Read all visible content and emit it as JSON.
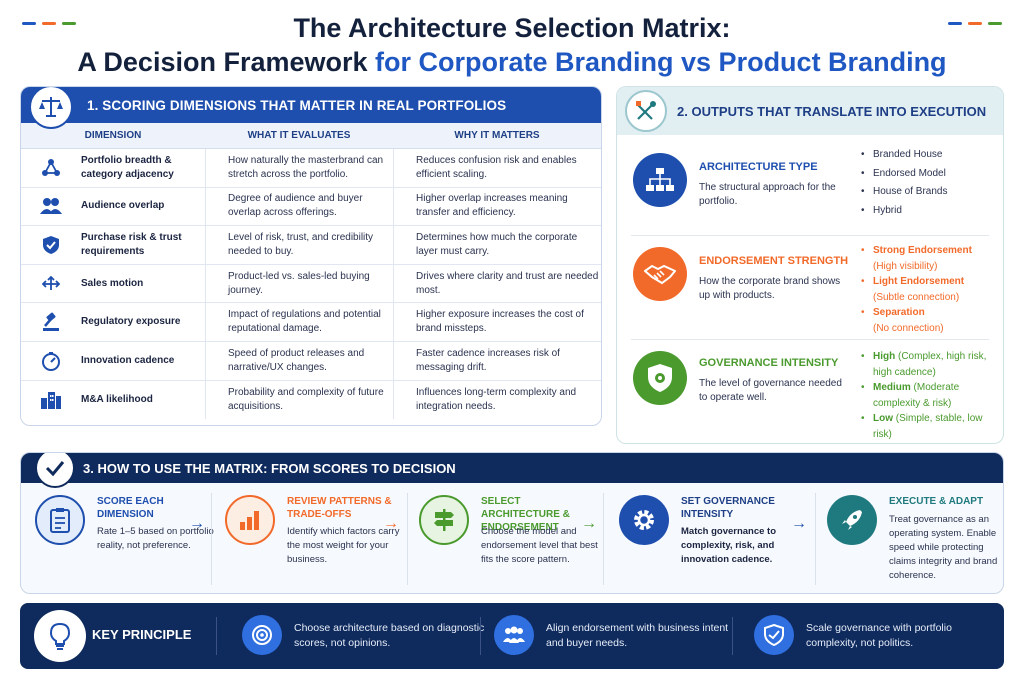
{
  "title": {
    "line1": "The Architecture Selection Matrix:",
    "line2_prefix": "A Decision Framework ",
    "line2_accent": "for Corporate Branding vs Product Branding"
  },
  "colors": {
    "blue": "#1e4fae",
    "orange": "#f26a2a",
    "green": "#4a9a2e",
    "navy": "#0f2a5c",
    "teal": "#1f7a7f"
  },
  "section1": {
    "heading": "1. SCORING DIMENSIONS THAT MATTER IN REAL PORTFOLIOS",
    "columns": [
      "DIMENSION",
      "WHAT IT EVALUATES",
      "WHY IT MATTERS"
    ],
    "rows": [
      {
        "icon": "network-icon",
        "dimension": "Portfolio breadth & category adjacency",
        "evaluates": "How naturally the masterbrand can stretch across the portfolio.",
        "matters": "Reduces confusion risk and enables efficient scaling."
      },
      {
        "icon": "audience-icon",
        "dimension": "Audience overlap",
        "evaluates": "Degree of audience and buyer overlap across offerings.",
        "matters": "Higher overlap increases meaning transfer and efficiency."
      },
      {
        "icon": "shield-check-icon",
        "dimension": "Purchase risk & trust requirements",
        "evaluates": "Level of risk, trust, and credibility needed to buy.",
        "matters": "Determines how much the corporate layer must carry."
      },
      {
        "icon": "arrows-icon",
        "dimension": "Sales motion",
        "evaluates": "Product-led vs. sales-led buying journey.",
        "matters": "Drives where clarity and trust are needed most."
      },
      {
        "icon": "gavel-icon",
        "dimension": "Regulatory exposure",
        "evaluates": "Impact of regulations and potential reputational damage.",
        "matters": "Higher exposure increases the cost of brand missteps."
      },
      {
        "icon": "gauge-icon",
        "dimension": "Innovation cadence",
        "evaluates": "Speed of product releases and narrative/UX changes.",
        "matters": "Faster cadence increases risk of messaging drift."
      },
      {
        "icon": "buildings-icon",
        "dimension": "M&A likelihood",
        "evaluates": "Probability and complexity of future acquisitions.",
        "matters": "Influences long-term complexity and integration needs."
      }
    ]
  },
  "section2": {
    "heading": "2. OUTPUTS THAT TRANSLATE INTO EXECUTION",
    "outputs": [
      {
        "name": "ARCHITECTURE TYPE",
        "desc": "The structural approach for the portfolio.",
        "items": [
          "Branded House",
          "Endorsed Model",
          "House of Brands",
          "Hybrid"
        ]
      },
      {
        "name": "ENDORSEMENT STRENGTH",
        "desc": "How the corporate brand shows up with products.",
        "items": [
          {
            "bold": "Strong Endorsement",
            "rest": "(High visibility)"
          },
          {
            "bold": "Light Endorsement",
            "rest": "(Subtle connection)"
          },
          {
            "bold": "Separation",
            "rest": "(No connection)"
          }
        ]
      },
      {
        "name": "GOVERNANCE INTENSITY",
        "desc": "The level of governance needed to operate well.",
        "items": [
          {
            "bold": "High",
            "rest": " (Complex, high risk, high cadence)"
          },
          {
            "bold": "Medium",
            "rest": " (Moderate complexity & risk)"
          },
          {
            "bold": "Low",
            "rest": " (Simple, stable, low risk)"
          }
        ]
      }
    ]
  },
  "section3": {
    "heading": "3. HOW TO USE THE MATRIX: FROM SCORES TO DECISION",
    "steps": [
      {
        "title": "SCORE EACH DIMENSION",
        "desc": "Rate 1–5 based on portfolio reality, not preference."
      },
      {
        "title": "REVIEW PATTERNS & TRADE-OFFS",
        "desc": "Identify which factors carry the most weight for your business."
      },
      {
        "title": "SELECT ARCHITECTURE & ENDORSEMENT",
        "desc": "Choose the model and endorsement level that best fits the score pattern."
      },
      {
        "title": "SET GOVERNANCE INTENSITY",
        "desc": "Match governance to complexity, risk, and innovation cadence."
      },
      {
        "title": "EXECUTE & ADAPT",
        "desc": "Treat governance as an operating system. Enable speed while protecting claims integrity and brand coherence."
      }
    ],
    "arrow": "→"
  },
  "key_principle": {
    "label": "KEY PRINCIPLE",
    "points": [
      "Choose architecture based on diagnostic scores, not opinions.",
      "Align endorsement with business intent and buyer needs.",
      "Scale governance with portfolio complexity, not politics."
    ]
  }
}
